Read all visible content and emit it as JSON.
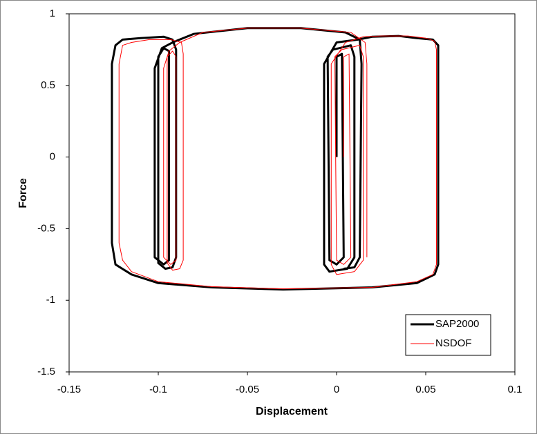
{
  "chart_data": {
    "type": "line",
    "xlabel": "Displacement",
    "ylabel": "Force",
    "xlim": [
      -0.15,
      0.1
    ],
    "xticks": [
      -0.15,
      -0.1,
      -0.05,
      0,
      0.05,
      0.1
    ],
    "ylim": [
      -1.5,
      1
    ],
    "yticks": [
      -1.5,
      -1,
      -0.5,
      0,
      0.5,
      1
    ],
    "legend": "lower right",
    "series": [
      {
        "name": "SAP2000",
        "color": "#000000",
        "x": [
          0,
          0,
          0.003,
          0.004,
          0,
          -0.004,
          -0.005,
          -0.002,
          0.008,
          0.01,
          0.01,
          0.006,
          -0.004,
          -0.007,
          -0.007,
          0,
          0.012,
          0.02,
          0.035,
          0.045,
          0.054,
          0.057,
          0.057,
          0.055,
          0.045,
          0.02,
          -0.03,
          -0.07,
          -0.1,
          -0.115,
          -0.124,
          -0.126,
          -0.126,
          -0.124,
          -0.12,
          -0.11,
          -0.097,
          -0.092,
          -0.09,
          -0.09,
          -0.092,
          -0.096,
          -0.1,
          -0.1,
          -0.097,
          -0.094,
          -0.094,
          -0.097,
          -0.102,
          -0.102,
          -0.098,
          -0.092,
          -0.08,
          -0.05,
          -0.02,
          0.005,
          0.013,
          0.014,
          0.013,
          0.01,
          0.004
        ],
        "values": [
          0,
          0.7,
          0.72,
          -0.7,
          -0.75,
          -0.72,
          0.7,
          0.75,
          0.78,
          0.7,
          -0.7,
          -0.78,
          -0.8,
          -0.75,
          0.65,
          0.8,
          0.82,
          0.84,
          0.845,
          0.83,
          0.82,
          0.78,
          -0.75,
          -0.82,
          -0.88,
          -0.91,
          -0.925,
          -0.91,
          -0.88,
          -0.82,
          -0.75,
          -0.6,
          0.65,
          0.78,
          0.82,
          0.83,
          0.84,
          0.82,
          0.75,
          -0.7,
          -0.77,
          -0.78,
          -0.74,
          0.7,
          0.76,
          0.74,
          -0.72,
          -0.75,
          -0.7,
          0.62,
          0.76,
          0.8,
          0.86,
          0.9,
          0.9,
          0.87,
          0.82,
          0.65,
          -0.7,
          -0.77,
          -0.78
        ]
      },
      {
        "name": "NSDOF",
        "color": "#ff0000",
        "x": [
          0.004,
          0.004,
          0.007,
          0.008,
          0.004,
          0,
          -0.001,
          0.003,
          0.013,
          0.015,
          0.015,
          0.01,
          0,
          -0.003,
          -0.003,
          0.005,
          0.015,
          0.025,
          0.04,
          0.05,
          0.055,
          0.056,
          0.056,
          0.054,
          0.045,
          0.02,
          -0.03,
          -0.07,
          -0.1,
          -0.115,
          -0.12,
          -0.122,
          -0.122,
          -0.12,
          -0.115,
          -0.105,
          -0.093,
          -0.087,
          -0.086,
          -0.086,
          -0.088,
          -0.092,
          -0.095,
          -0.095,
          -0.092,
          -0.09,
          -0.09,
          -0.093,
          -0.097,
          -0.097,
          -0.094,
          -0.088,
          -0.075,
          -0.05,
          -0.02,
          0.008,
          0.016,
          0.017,
          0.017
        ],
        "values": [
          0,
          0.7,
          0.72,
          -0.7,
          -0.75,
          -0.72,
          0.7,
          0.75,
          0.78,
          0.7,
          -0.72,
          -0.8,
          -0.82,
          -0.75,
          0.65,
          0.8,
          0.84,
          0.845,
          0.845,
          0.83,
          0.81,
          0.75,
          -0.75,
          -0.82,
          -0.87,
          -0.91,
          -0.92,
          -0.905,
          -0.87,
          -0.8,
          -0.72,
          -0.6,
          0.65,
          0.78,
          0.8,
          0.82,
          0.82,
          0.8,
          0.72,
          -0.72,
          -0.78,
          -0.79,
          -0.74,
          0.7,
          0.74,
          0.7,
          -0.72,
          -0.75,
          -0.7,
          0.62,
          0.74,
          0.8,
          0.87,
          0.9,
          0.9,
          0.87,
          0.8,
          0.65,
          -0.7
        ]
      }
    ]
  }
}
